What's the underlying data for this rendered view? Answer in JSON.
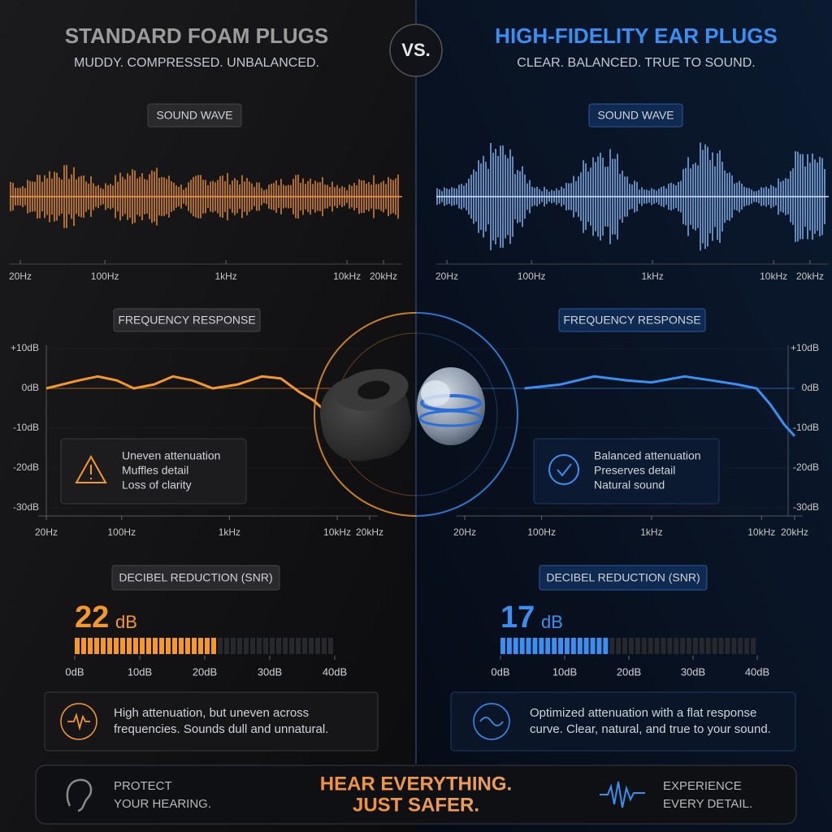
{
  "vs": "VS.",
  "left": {
    "title": "STANDARD FOAM PLUGS",
    "subtitle": "MUDDY. COMPRESSED. UNBALANCED.",
    "color": "#f5982a",
    "title_color": "#9c9c9c",
    "wave_label": "SOUND WAVE",
    "wave_ticks": [
      {
        "value": 20,
        "label": "20Hz"
      },
      {
        "value": 100,
        "label": "100Hz"
      },
      {
        "value": 1000,
        "label": "1kHz"
      },
      {
        "value": 10000,
        "label": "10kHz"
      },
      {
        "value": 20000,
        "label": "20kHz"
      }
    ],
    "response": {
      "label": "FREQUENCY RESPONSE",
      "xlim": [
        20,
        20000
      ],
      "ylim": [
        -30,
        10
      ],
      "log_x": true,
      "xticks": [
        {
          "value": 20,
          "label": "20Hz"
        },
        {
          "value": 100,
          "label": "100Hz"
        },
        {
          "value": 1000,
          "label": "1kHz"
        },
        {
          "value": 10000,
          "label": "10kHz"
        },
        {
          "value": 20000,
          "label": "20kHz"
        }
      ],
      "yticks": [
        {
          "value": 10,
          "label": "+10dB"
        },
        {
          "value": 0,
          "label": "0dB"
        },
        {
          "value": -10,
          "label": "-10dB"
        },
        {
          "value": -20,
          "label": "-20dB"
        },
        {
          "value": -30,
          "label": "-30dB"
        }
      ],
      "x": [
        20,
        40,
        60,
        90,
        130,
        200,
        300,
        450,
        700,
        1200,
        2000,
        3000,
        4500,
        6000,
        8000
      ],
      "y": [
        0,
        2,
        3,
        2,
        0,
        1,
        3,
        2,
        0,
        1,
        3,
        2.5,
        -1,
        -3,
        -6
      ]
    },
    "notes": [
      "Uneven attenuation",
      "Muffles detail",
      "Loss of clarity"
    ],
    "snr": {
      "label": "DECIBEL REDUCTION (SNR)",
      "value": 22,
      "unit": "dB",
      "xlim": [
        0,
        40
      ],
      "xticks": [
        {
          "value": 0,
          "label": "0dB"
        },
        {
          "value": 10,
          "label": "10dB"
        },
        {
          "value": 20,
          "label": "20dB"
        },
        {
          "value": 30,
          "label": "30dB"
        },
        {
          "value": 40,
          "label": "40dB"
        }
      ]
    },
    "summary": [
      "High attenuation, but uneven across",
      "frequencies. Sounds dull and unnatural."
    ]
  },
  "right": {
    "title": "HIGH-FIDELITY EAR PLUGS",
    "subtitle": "CLEAR. BALANCED. TRUE TO SOUND.",
    "color": "#3a8ff2",
    "title_color": "#3a8ff2",
    "wave_label": "SOUND WAVE",
    "wave_ticks": [
      {
        "value": 20,
        "label": "20Hz"
      },
      {
        "value": 100,
        "label": "100Hz"
      },
      {
        "value": 1000,
        "label": "1kHz"
      },
      {
        "value": 10000,
        "label": "10kHz"
      },
      {
        "value": 20000,
        "label": "20kHz"
      }
    ],
    "response": {
      "label": "FREQUENCY RESPONSE",
      "xlim": [
        20,
        20000
      ],
      "ylim": [
        -30,
        10
      ],
      "log_x": true,
      "xticks": [
        {
          "value": 20,
          "label": "20Hz"
        },
        {
          "value": 100,
          "label": "100Hz"
        },
        {
          "value": 1000,
          "label": "1kHz"
        },
        {
          "value": 10000,
          "label": "10kHz"
        },
        {
          "value": 20000,
          "label": "20kHz"
        }
      ],
      "yticks": [
        {
          "value": 10,
          "label": "+10dB"
        },
        {
          "value": 0,
          "label": "0dB"
        },
        {
          "value": -10,
          "label": "-10dB"
        },
        {
          "value": -20,
          "label": "-20dB"
        },
        {
          "value": -30,
          "label": "-30dB"
        }
      ],
      "x": [
        70,
        150,
        300,
        600,
        1000,
        2000,
        3500,
        6000,
        9000,
        12000,
        16000,
        20000
      ],
      "y": [
        0,
        1,
        3,
        2,
        1.5,
        3,
        2,
        1,
        0,
        -4,
        -9,
        -12
      ]
    },
    "notes": [
      "Balanced attenuation",
      "Preserves detail",
      "Natural sound"
    ],
    "snr": {
      "label": "DECIBEL REDUCTION (SNR)",
      "value": 17,
      "unit": "dB",
      "xlim": [
        0,
        40
      ],
      "xticks": [
        {
          "value": 0,
          "label": "0dB"
        },
        {
          "value": 10,
          "label": "10dB"
        },
        {
          "value": 20,
          "label": "20dB"
        },
        {
          "value": 30,
          "label": "30dB"
        },
        {
          "value": 40,
          "label": "40dB"
        }
      ]
    },
    "summary": [
      "Optimized attenuation with a flat response",
      "curve. Clear, natural, and true to your sound."
    ]
  },
  "banner": {
    "left": [
      "PROTECT",
      "YOUR HEARING."
    ],
    "center": [
      "HEAR EVERYTHING.",
      "JUST SAFER."
    ],
    "right": [
      "EXPERIENCE",
      "EVERY DETAIL."
    ]
  }
}
